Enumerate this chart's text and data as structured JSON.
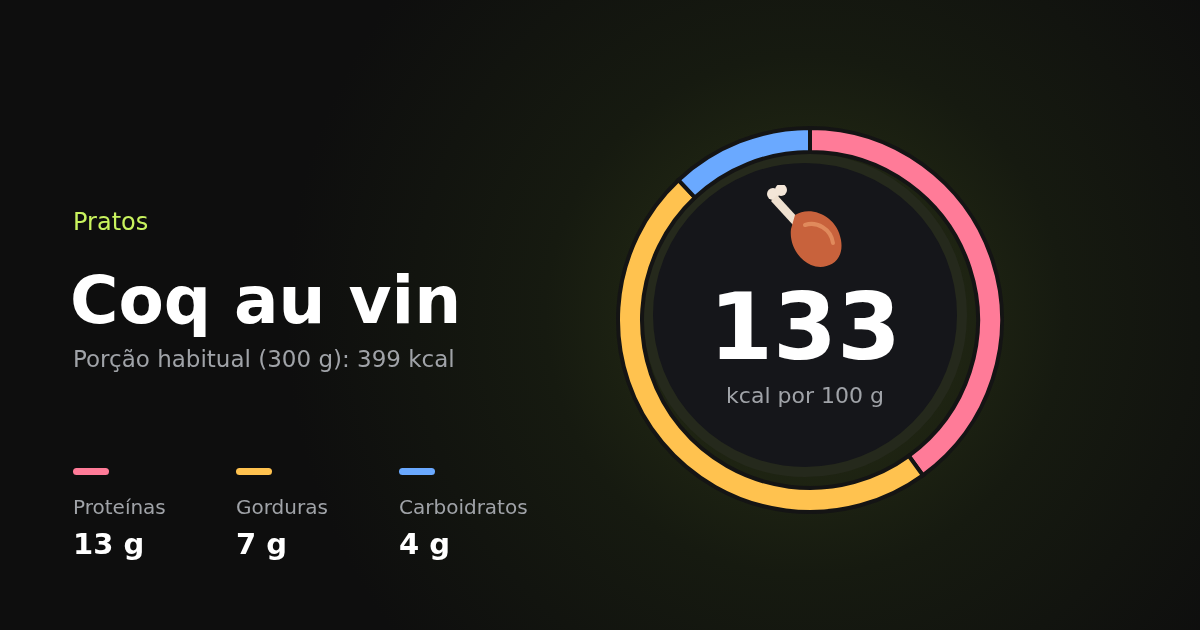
{
  "chart_data": {
    "type": "donut",
    "title": "Coq au vin",
    "subtitle": "Porção habitual (300 g): 399 kcal",
    "annotations": [
      "Pratos",
      "133",
      "kcal por 100 g",
      "13 g",
      "7 g",
      "4 g"
    ],
    "categories": [
      "Proteínas",
      "Gorduras",
      "Carboidratos"
    ],
    "values": [
      40,
      48,
      12
    ],
    "colors": [
      "#ff7b98",
      "#ffc24f",
      "#6aa9ff"
    ],
    "legend": "left"
  }
}
